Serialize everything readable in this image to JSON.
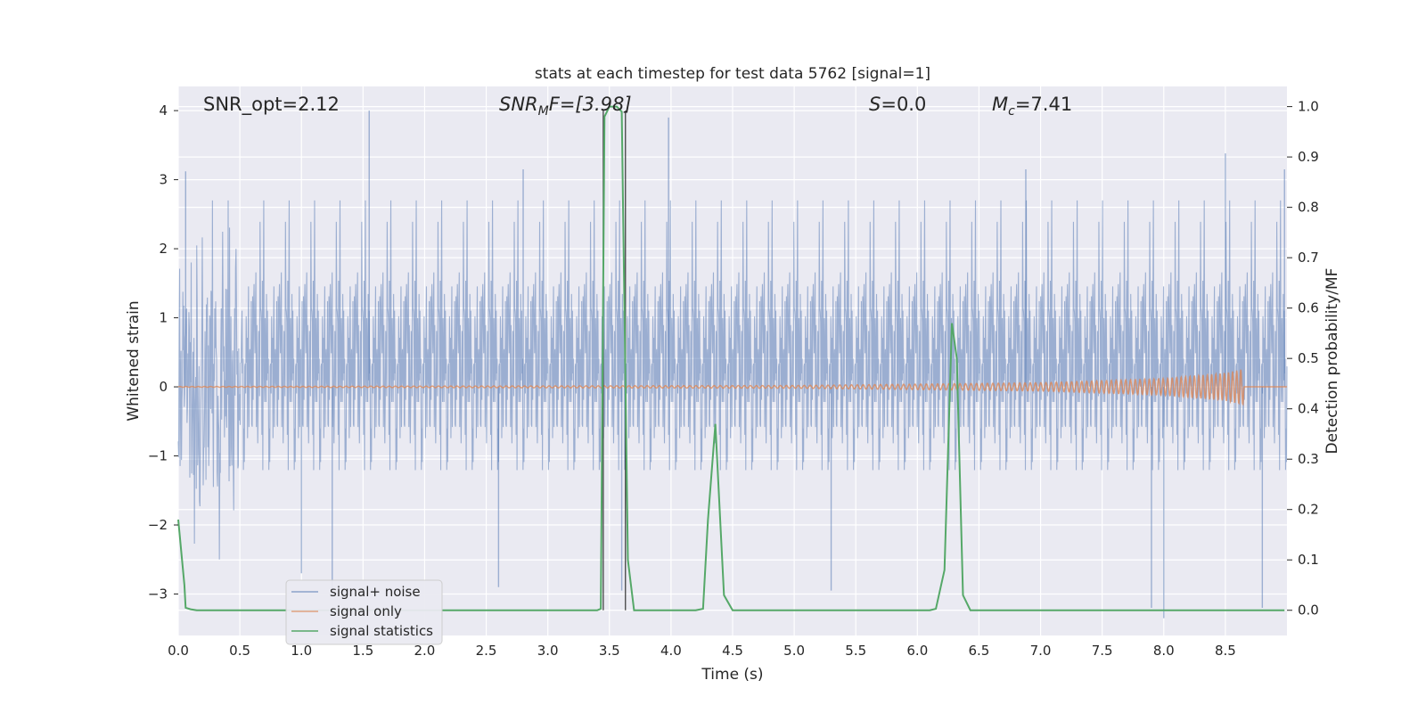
{
  "chart_data": {
    "type": "line",
    "title": "stats at each timestep for test data 5762 [signal=1]",
    "xlabel": "Time (s)",
    "ylabel": "Whitened strain",
    "ylabel_right": "Detection probability/MF",
    "xlim": [
      0.0,
      9.0
    ],
    "ylim": [
      -3.6,
      4.35
    ],
    "ylim_right": [
      -0.05,
      1.04
    ],
    "xticks": [
      "0.0",
      "0.5",
      "1.0",
      "1.5",
      "2.0",
      "2.5",
      "3.0",
      "3.5",
      "4.0",
      "4.5",
      "5.0",
      "5.5",
      "6.0",
      "6.5",
      "7.0",
      "7.5",
      "8.0",
      "8.5"
    ],
    "yticks_left": [
      "4",
      "3",
      "2",
      "1",
      "0",
      "−1",
      "−2",
      "−3"
    ],
    "yticks_right": [
      "1.0",
      "0.9",
      "0.8",
      "0.7",
      "0.6",
      "0.5",
      "0.4",
      "0.3",
      "0.2",
      "0.1",
      "0.0"
    ],
    "grid": true,
    "legend_position": "lower-left",
    "annotations": {
      "snr_opt": "SNR_opt=2.12",
      "snr_mf_base": "SNR",
      "snr_mf_sub": "M",
      "snr_mf_rest": "F=[3.98]",
      "s_italic": "S",
      "s_rest": "=0.0",
      "mc_base": "M",
      "mc_sub": "c",
      "mc_rest": "=7.41"
    },
    "vertical_lines_x": [
      3.45,
      3.63
    ],
    "colors": {
      "noise": "#4c72b0",
      "signal": "#dd8452",
      "stats": "#55a868",
      "background": "#eaeaf2",
      "grid": "#ffffff",
      "vline": "#262626"
    },
    "series": [
      {
        "name": "signal+ noise",
        "description_style": "dense noise band",
        "band_typical": [
          -1.9,
          2.1
        ],
        "extreme_peaks": [
          {
            "x": 0.06,
            "y": 3.12
          },
          {
            "x": 1.55,
            "y": 4.0
          },
          {
            "x": 2.8,
            "y": 3.15
          },
          {
            "x": 3.98,
            "y": 3.9
          },
          {
            "x": 6.88,
            "y": 3.15
          },
          {
            "x": 8.5,
            "y": 3.38
          },
          {
            "x": 8.98,
            "y": 3.15
          },
          {
            "x": 1.0,
            "y": -2.7
          },
          {
            "x": 1.25,
            "y": -3.05
          },
          {
            "x": 2.6,
            "y": -2.9
          },
          {
            "x": 3.6,
            "y": -2.95
          },
          {
            "x": 5.3,
            "y": -2.95
          },
          {
            "x": 7.9,
            "y": -3.2
          },
          {
            "x": 8.0,
            "y": -3.35
          },
          {
            "x": 8.8,
            "y": -3.2
          }
        ]
      },
      {
        "name": "signal only",
        "description_style": "chirp",
        "amplitude_envelope": [
          {
            "x": 0.0,
            "y": 0.005
          },
          {
            "x": 5.0,
            "y": 0.02
          },
          {
            "x": 7.0,
            "y": 0.06
          },
          {
            "x": 8.0,
            "y": 0.12
          },
          {
            "x": 8.5,
            "y": 0.2
          },
          {
            "x": 8.65,
            "y": 0.26
          }
        ]
      },
      {
        "name": "signal statistics",
        "axis": "right",
        "x": [
          0.0,
          0.05,
          0.06,
          0.1,
          0.15,
          3.4,
          3.43,
          3.46,
          3.5,
          3.56,
          3.6,
          3.65,
          3.7,
          3.75,
          4.2,
          4.26,
          4.3,
          4.36,
          4.43,
          4.5,
          6.1,
          6.15,
          6.22,
          6.28,
          6.32,
          6.37,
          6.43,
          8.98
        ],
        "values": [
          0.18,
          0.05,
          0.005,
          0.002,
          0.0,
          0.0,
          0.003,
          0.98,
          1.0,
          1.0,
          0.99,
          0.1,
          0.0,
          0.0,
          0.0,
          0.003,
          0.18,
          0.37,
          0.03,
          0.0,
          0.0,
          0.003,
          0.08,
          0.57,
          0.5,
          0.03,
          0.0,
          0.0
        ]
      }
    ]
  }
}
